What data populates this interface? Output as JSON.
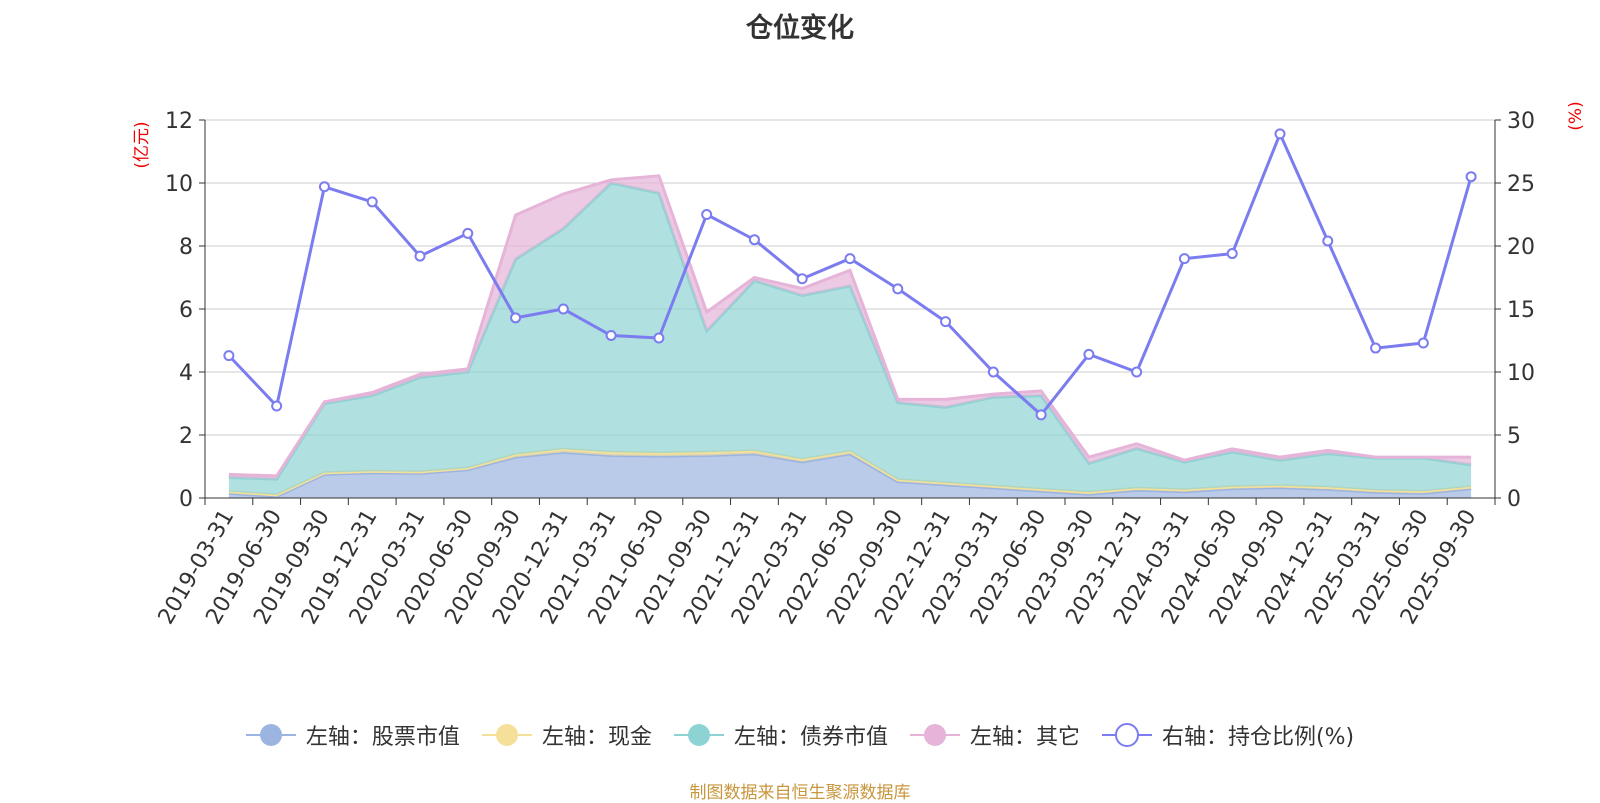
{
  "title": "仓位变化",
  "source_note": "制图数据来自恒生聚源数据库",
  "chart_data": {
    "type": "area",
    "title": "仓位变化",
    "categories": [
      "2019-03-31",
      "2019-06-30",
      "2019-09-30",
      "2019-12-31",
      "2020-03-31",
      "2020-06-30",
      "2020-09-30",
      "2020-12-31",
      "2021-03-31",
      "2021-06-30",
      "2021-09-30",
      "2021-12-31",
      "2022-03-31",
      "2022-06-30",
      "2022-09-30",
      "2022-12-31",
      "2023-03-31",
      "2023-06-30",
      "2023-09-30",
      "2023-12-31",
      "2024-03-31",
      "2024-06-30",
      "2024-09-30",
      "2024-12-31",
      "2025-03-31",
      "2025-06-30",
      "2025-09-30"
    ],
    "left_axis": {
      "label": "(亿元)",
      "min": 0,
      "max": 12,
      "ticks": [
        0,
        2,
        4,
        6,
        8,
        10,
        12
      ]
    },
    "right_axis": {
      "label": "(%)",
      "min": 0,
      "max": 30,
      "ticks": [
        0,
        5,
        10,
        15,
        20,
        25,
        30
      ]
    },
    "stacked": true,
    "series": [
      {
        "name": "左轴：股票市值",
        "axis": "left",
        "color": "#9cb4e0",
        "values": [
          0.15,
          0.05,
          0.75,
          0.8,
          0.78,
          0.9,
          1.3,
          1.45,
          1.35,
          1.33,
          1.35,
          1.4,
          1.15,
          1.4,
          0.52,
          0.42,
          0.32,
          0.22,
          0.12,
          0.25,
          0.2,
          0.3,
          0.33,
          0.28,
          0.18,
          0.15,
          0.3
        ]
      },
      {
        "name": "左轴：现金",
        "axis": "left",
        "color": "#f5e09a",
        "values": [
          0.05,
          0.05,
          0.05,
          0.05,
          0.05,
          0.05,
          0.08,
          0.1,
          0.1,
          0.1,
          0.1,
          0.1,
          0.08,
          0.08,
          0.06,
          0.06,
          0.06,
          0.06,
          0.06,
          0.06,
          0.06,
          0.06,
          0.06,
          0.06,
          0.06,
          0.06,
          0.06
        ]
      },
      {
        "name": "左轴：债券市值",
        "axis": "left",
        "color": "#8ed3d3",
        "values": [
          0.45,
          0.5,
          2.2,
          2.4,
          3.0,
          3.05,
          6.2,
          7.0,
          8.55,
          8.25,
          3.85,
          5.4,
          5.2,
          5.25,
          2.45,
          2.4,
          2.82,
          2.97,
          0.92,
          1.26,
          0.88,
          1.1,
          0.81,
          1.07,
          1.03,
          1.06,
          0.69
        ]
      },
      {
        "name": "左轴：其它",
        "axis": "left",
        "color": "#e6b4d8",
        "values": [
          0.1,
          0.1,
          0.05,
          0.1,
          0.1,
          0.1,
          1.4,
          1.1,
          0.1,
          0.55,
          0.6,
          0.1,
          0.22,
          0.5,
          0.1,
          0.25,
          0.1,
          0.15,
          0.2,
          0.15,
          0.06,
          0.1,
          0.1,
          0.1,
          0.03,
          0.03,
          0.25
        ]
      },
      {
        "name": "右轴：持仓比例(%)",
        "axis": "right",
        "color": "#7b7cf0",
        "values": [
          11.3,
          7.3,
          24.7,
          23.5,
          19.2,
          21.0,
          14.3,
          15.0,
          12.9,
          12.7,
          22.5,
          20.5,
          17.4,
          19.0,
          16.6,
          14.0,
          10.0,
          6.6,
          11.4,
          10.0,
          19.0,
          19.4,
          28.9,
          20.4,
          11.9,
          12.3,
          25.5
        ]
      }
    ]
  }
}
